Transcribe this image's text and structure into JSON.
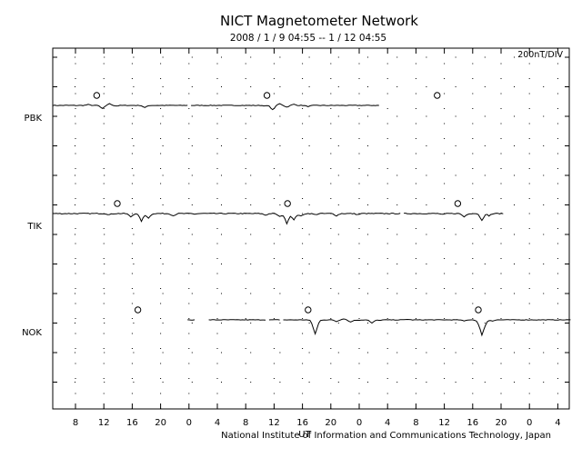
{
  "chart_data": {
    "type": "line",
    "title": "NICT Magnetometer Network",
    "subtitle": "2008 / 1 / 9   04:55 --   1 / 12   04:55",
    "scale_label": "200nT/DIV",
    "footer": "National Institute of Information and Communications Technology, Japan",
    "x_unit": "UT",
    "x_tick_labels": [
      "8",
      "12",
      "16",
      "20",
      "0",
      "4",
      "8",
      "12",
      "16",
      "20",
      "0",
      "4",
      "8",
      "12",
      "16",
      "20",
      "0",
      "4"
    ],
    "grid": true,
    "stations": [
      {
        "name": "PBK",
        "midnight_markers_hours": [
          6.2,
          30.2,
          54.2
        ],
        "segments": [
          {
            "start": 0,
            "end": 19,
            "base": 0,
            "points": [
              [
                5,
                1.5
              ],
              [
                7,
                -6
              ],
              [
                8,
                3
              ],
              [
                9,
                -1
              ],
              [
                13,
                -4
              ]
            ]
          },
          {
            "start": 19.5,
            "end": 46,
            "base": 0,
            "points": [
              [
                30,
                -1
              ],
              [
                31,
                -8
              ],
              [
                32,
                3
              ],
              [
                33,
                -3
              ],
              [
                34,
                2
              ],
              [
                36,
                -2
              ]
            ]
          }
        ],
        "noise": 1
      },
      {
        "name": "TIK",
        "midnight_markers_hours": [
          9.1,
          33.1,
          57.1
        ],
        "segments": [
          {
            "start": 0,
            "end": 49,
            "base": 0,
            "points": [
              [
                8,
                -2
              ],
              [
                11,
                -6
              ],
              [
                12.5,
                -14
              ],
              [
                13.5,
                -8
              ],
              [
                17,
                -4
              ],
              [
                20,
                -1
              ],
              [
                30,
                -3
              ],
              [
                32,
                -6
              ],
              [
                33,
                -18
              ],
              [
                34,
                -12
              ],
              [
                35,
                -5
              ],
              [
                37,
                -2
              ],
              [
                40,
                -4
              ],
              [
                43,
                -2
              ],
              [
                45,
                0
              ]
            ]
          },
          {
            "start": 49.5,
            "end": 63.5,
            "base": 0,
            "points": [
              [
                55,
                -2
              ],
              [
                58,
                -6
              ],
              [
                60.5,
                -12
              ],
              [
                61.5,
                -4
              ],
              [
                63.5,
                0
              ]
            ]
          }
        ],
        "noise": 1.6
      },
      {
        "name": "NOK",
        "midnight_markers_hours": [
          12.0,
          36.0,
          60.0
        ],
        "segments": [
          {
            "start": 19,
            "end": 20,
            "base": 0,
            "points": []
          },
          {
            "start": 22,
            "end": 30,
            "base": 0,
            "points": []
          },
          {
            "start": 30.5,
            "end": 32,
            "base": 0,
            "points": []
          },
          {
            "start": 32.5,
            "end": 44,
            "base": 0,
            "points": [
              [
                36.5,
                -2
              ],
              [
                37,
                -25
              ],
              [
                37.5,
                -2
              ],
              [
                40,
                -3
              ],
              [
                41,
                2
              ],
              [
                42,
                -4
              ],
              [
                43,
                -1
              ]
            ]
          },
          {
            "start": 44,
            "end": 73,
            "base": 0,
            "points": [
              [
                45,
                -6
              ],
              [
                46,
                -1
              ],
              [
                50,
                1
              ],
              [
                55,
                0
              ],
              [
                58,
                -2
              ],
              [
                60,
                -4
              ],
              [
                60.5,
                -26
              ],
              [
                61,
                -6
              ],
              [
                62,
                -2
              ],
              [
                66,
                0
              ]
            ]
          }
        ],
        "noise": 0.8
      }
    ]
  }
}
